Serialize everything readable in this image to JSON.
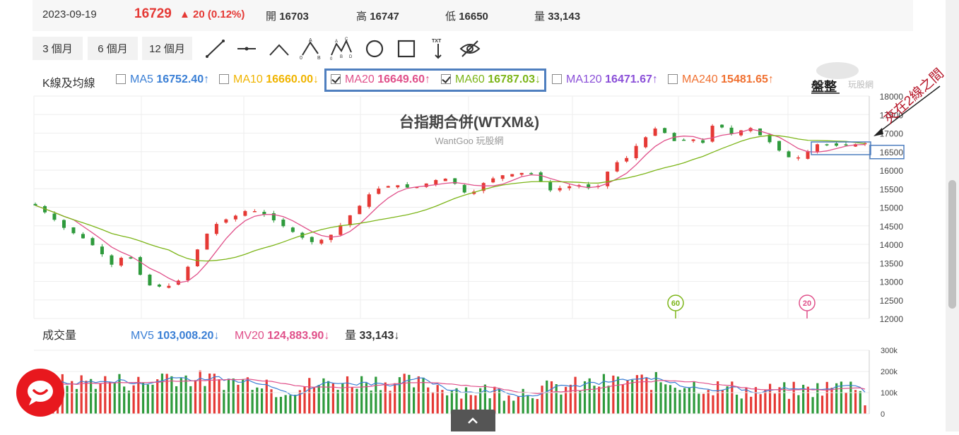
{
  "quote": {
    "date": "2023-09-19",
    "price": "16729",
    "change": "▲ 20 (0.12%)",
    "open_label": "開",
    "open": "16703",
    "high_label": "高",
    "high": "16747",
    "low_label": "低",
    "low": "16650",
    "volume_label": "量",
    "volume": "33,143"
  },
  "toolbar": {
    "ranges": [
      "3 個月",
      "6 個月",
      "12 個月"
    ],
    "tools": [
      "line-tool-icon",
      "horizontal-line-tool-icon",
      "angle-line-tool-icon",
      "abc-pattern-tool-icon",
      "abcd-pattern-tool-icon",
      "circle-tool-icon",
      "rectangle-tool-icon",
      "text-tool-icon",
      "hide-drawings-icon"
    ],
    "abc_letters": "A B 0",
    "abcd_letters": "A C B D 0",
    "txt_label": "TXT"
  },
  "ma": {
    "label": "K線及均線",
    "items": [
      {
        "name": "MA5",
        "value": "16752.40",
        "arrow": "↑",
        "checked": false,
        "color": "#3a7fd5"
      },
      {
        "name": "MA10",
        "value": "16660.00",
        "arrow": "↓",
        "checked": false,
        "color": "#f0b400"
      },
      {
        "name": "MA20",
        "value": "16649.60",
        "arrow": "↑",
        "checked": true,
        "color": "#e0508a"
      },
      {
        "name": "MA60",
        "value": "16787.03",
        "arrow": "↓",
        "checked": true,
        "color": "#7cb518"
      },
      {
        "name": "MA120",
        "value": "16471.67",
        "arrow": "↑",
        "checked": false,
        "color": "#8a4fd8"
      },
      {
        "name": "MA240",
        "value": "15481.65",
        "arrow": "↑",
        "checked": false,
        "color": "#f07030"
      }
    ]
  },
  "logo": {
    "text": "玩股網",
    "side_label": "盤整"
  },
  "chart_data": [
    {
      "type": "candlestick",
      "title": "台指期合併(WTXM&)",
      "subtitle": "WantGoo 玩股網",
      "ylim": [
        12000,
        18000
      ],
      "yticks": [
        12000,
        12500,
        13000,
        13500,
        14000,
        14500,
        15000,
        15500,
        16000,
        16500,
        17000,
        17500,
        18000
      ],
      "ytick_labels": [
        "12000",
        "12500",
        "13000",
        "13500",
        "14000",
        "14500",
        "15000",
        "15500",
        "16000",
        "16500",
        "17000",
        "17500",
        "18000"
      ],
      "highlight_tick": "16500",
      "anchors": [
        [
          0,
          15050
        ],
        [
          6,
          14750
        ],
        [
          12,
          14400
        ],
        [
          18,
          14200
        ],
        [
          24,
          13900
        ],
        [
          28,
          13600
        ],
        [
          30,
          13450
        ],
        [
          34,
          13650
        ],
        [
          36,
          13800
        ],
        [
          40,
          13300
        ],
        [
          44,
          12900
        ],
        [
          50,
          12850
        ],
        [
          54,
          12900
        ],
        [
          56,
          13000
        ],
        [
          60,
          13400
        ],
        [
          64,
          13900
        ],
        [
          68,
          14350
        ],
        [
          72,
          14600
        ],
        [
          78,
          14750
        ],
        [
          84,
          14950
        ],
        [
          90,
          14800
        ],
        [
          96,
          14550
        ],
        [
          102,
          14300
        ],
        [
          108,
          14050
        ],
        [
          114,
          14150
        ],
        [
          118,
          14350
        ],
        [
          122,
          14700
        ],
        [
          126,
          14900
        ],
        [
          130,
          15300
        ],
        [
          136,
          15550
        ],
        [
          142,
          15600
        ],
        [
          148,
          15500
        ],
        [
          154,
          15650
        ],
        [
          160,
          15800
        ],
        [
          164,
          15700
        ],
        [
          168,
          15400
        ],
        [
          172,
          15400
        ],
        [
          176,
          15650
        ],
        [
          182,
          15850
        ],
        [
          188,
          15900
        ],
        [
          194,
          15950
        ],
        [
          198,
          15750
        ],
        [
          202,
          15450
        ],
        [
          208,
          15550
        ],
        [
          214,
          15600
        ],
        [
          220,
          15450
        ],
        [
          224,
          15900
        ],
        [
          228,
          16200
        ],
        [
          232,
          16300
        ],
        [
          236,
          16650
        ],
        [
          240,
          16900
        ],
        [
          244,
          17150
        ],
        [
          246,
          17200
        ],
        [
          248,
          16900
        ],
        [
          252,
          16750
        ],
        [
          258,
          16850
        ],
        [
          262,
          16700
        ],
        [
          266,
          17200
        ],
        [
          270,
          17150
        ],
        [
          274,
          16950
        ],
        [
          278,
          17100
        ],
        [
          282,
          17150
        ],
        [
          286,
          16850
        ],
        [
          290,
          16700
        ],
        [
          294,
          16400
        ],
        [
          298,
          16300
        ],
        [
          302,
          16400
        ],
        [
          306,
          16700
        ],
        [
          310,
          16700
        ],
        [
          316,
          16650
        ],
        [
          322,
          16700
        ],
        [
          326,
          16729
        ]
      ],
      "candle_count": 88,
      "ma_series": [
        {
          "name": "MA20",
          "color": "#e0508a",
          "marker": "20"
        },
        {
          "name": "MA60",
          "color": "#7cb518",
          "marker": "60"
        }
      ],
      "annotation": {
        "text": "夾在2線之間",
        "color": "#b7182a"
      }
    },
    {
      "type": "bar",
      "title": "成交量",
      "ylim": [
        0,
        300000
      ],
      "yticks": [
        0,
        100000,
        200000,
        300000
      ],
      "ytick_labels": [
        "0",
        "100k",
        "200k",
        "300k"
      ],
      "legend": [
        {
          "name": "MV5",
          "value": "103,008.20",
          "arrow": "↓",
          "color": "#3a7fd5"
        },
        {
          "name": "MV20",
          "value": "124,883.90",
          "arrow": "↓",
          "color": "#e0508a"
        },
        {
          "name": "量",
          "value": "33,143",
          "arrow": "↓",
          "color": "#333333"
        }
      ]
    }
  ]
}
